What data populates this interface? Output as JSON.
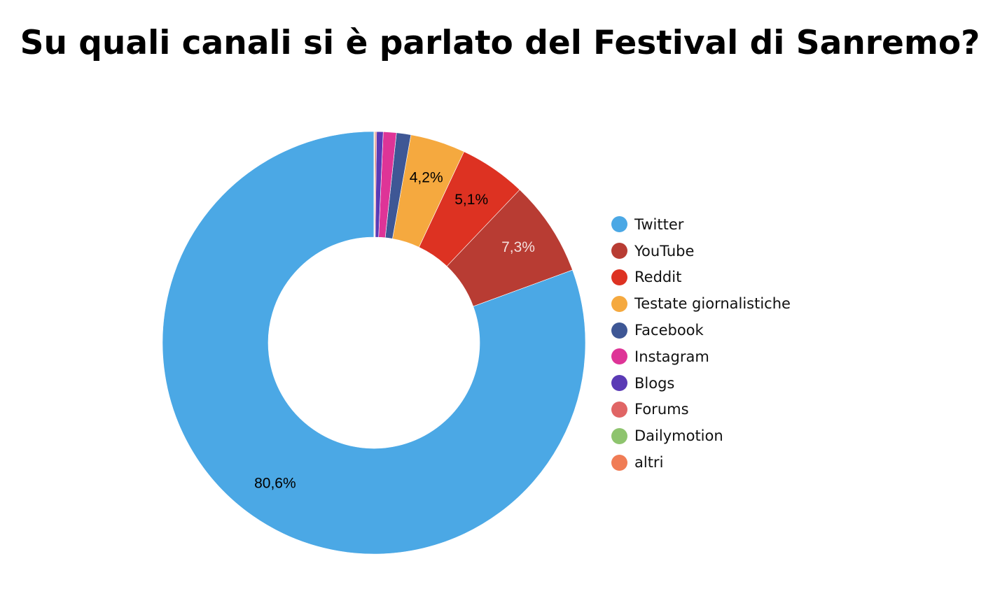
{
  "chart_data": {
    "type": "pie",
    "title": "Su quali canali si è parlato del Festival di Sanremo?",
    "legend_position": "right",
    "slices": [
      {
        "label": "Twitter",
        "value": 80.6,
        "display": "80,6%",
        "color": "#4ba8e5",
        "label_color": "#000000"
      },
      {
        "label": "YouTube",
        "value": 7.3,
        "display": "7,3%",
        "color": "#b83c33",
        "label_color": "#f3e0de"
      },
      {
        "label": "Reddit",
        "value": 5.1,
        "display": "5,1%",
        "color": "#dd3222",
        "label_color": "#000000"
      },
      {
        "label": "Testate giornalistiche",
        "value": 4.2,
        "display": "4,2%",
        "color": "#f5a93f",
        "label_color": "#000000"
      },
      {
        "label": "Facebook",
        "value": 1.1,
        "display": "",
        "color": "#3e5795",
        "label_color": "#ffffff"
      },
      {
        "label": "Instagram",
        "value": 1.0,
        "display": "",
        "color": "#de3497",
        "label_color": "#ffffff"
      },
      {
        "label": "Blogs",
        "value": 0.5,
        "display": "",
        "color": "#5a3ab5",
        "label_color": "#ffffff"
      },
      {
        "label": "Forums",
        "value": 0.1,
        "display": "",
        "color": "#e06565",
        "label_color": "#ffffff"
      },
      {
        "label": "Dailymotion",
        "value": 0.05,
        "display": "",
        "color": "#8ec46e",
        "label_color": "#ffffff"
      },
      {
        "label": "altri",
        "value": 0.05,
        "display": "",
        "color": "#f07c55",
        "label_color": "#ffffff"
      }
    ]
  }
}
